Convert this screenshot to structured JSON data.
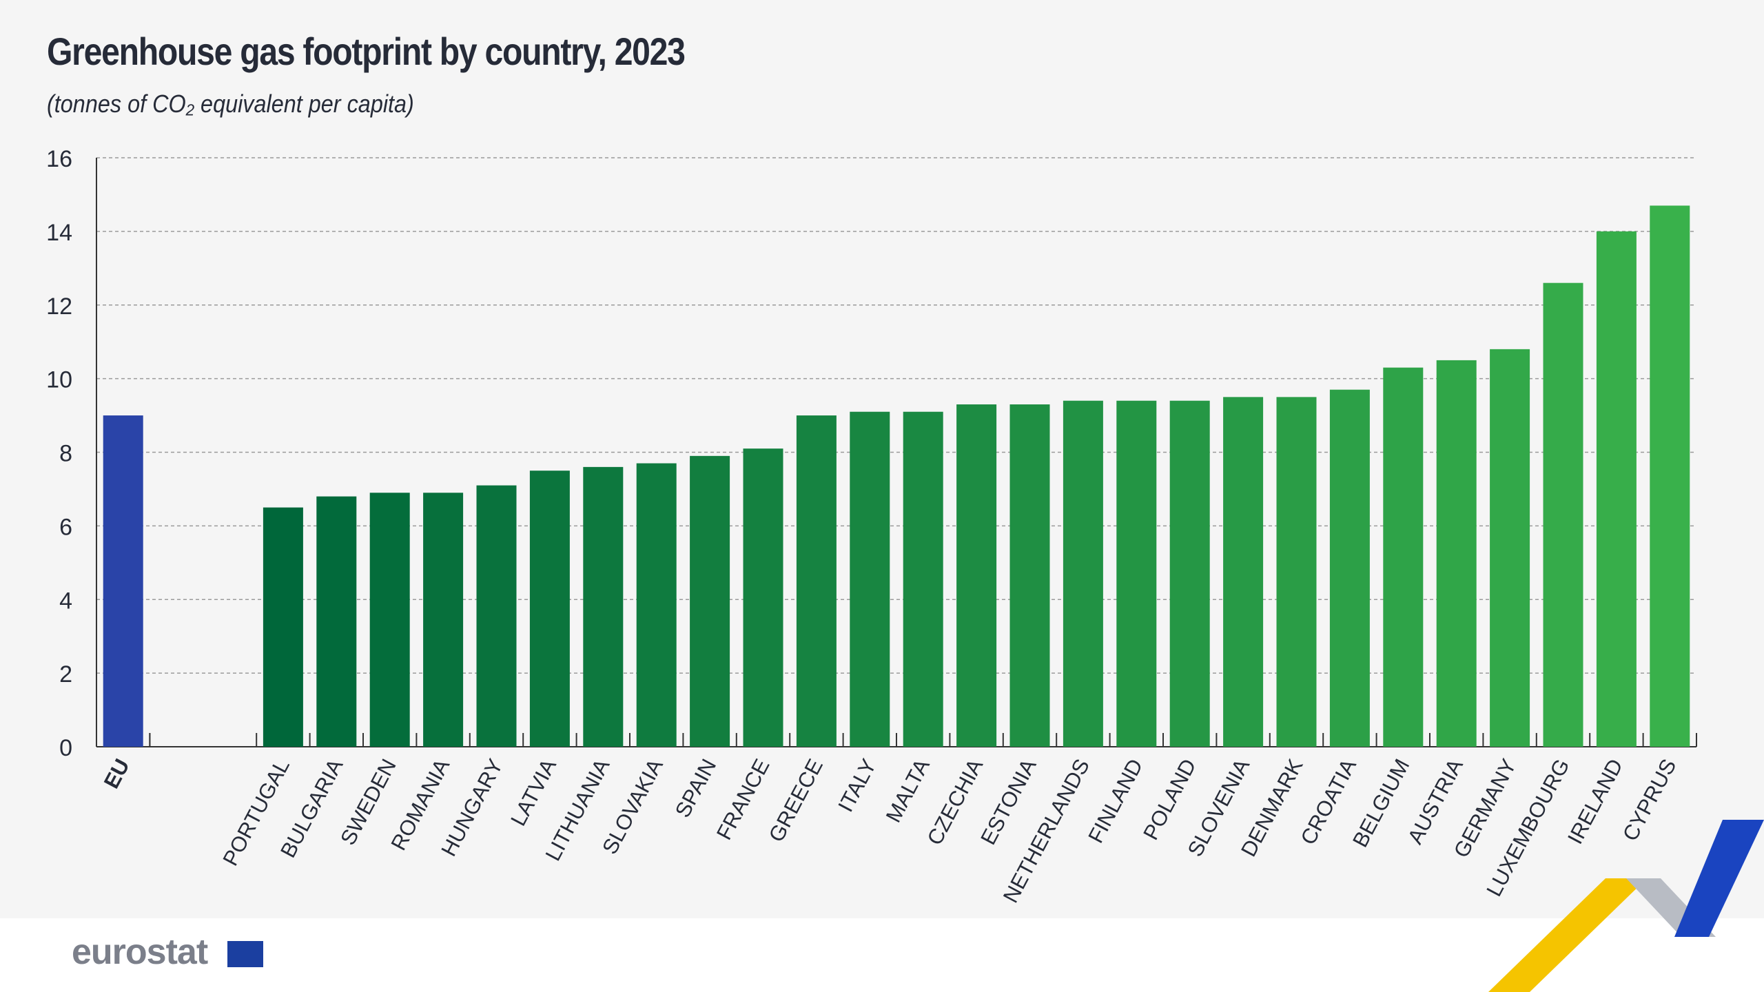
{
  "title": "Greenhouse gas footprint by country, 2023",
  "subtitle": "(tonnes of CO₂ equivalent per capita)",
  "logo": "eurostat",
  "chart_data": {
    "type": "bar",
    "title": "Greenhouse gas footprint by country, 2023",
    "ylabel": "(tonnes of CO2 equivalent per capita)",
    "ylim": [
      0,
      16
    ],
    "yticks": [
      0,
      2,
      4,
      6,
      8,
      10,
      12,
      14,
      16
    ],
    "grid": true,
    "categories": [
      "EU",
      "",
      "PORTUGAL",
      "BULGARIA",
      "SWEDEN",
      "ROMANIA",
      "HUNGARY",
      "LATVIA",
      "LITHUANIA",
      "SLOVAKIA",
      "SPAIN",
      "FRANCE",
      "GREECE",
      "ITALY",
      "MALTA",
      "CZECHIA",
      "ESTONIA",
      "NETHERLANDS",
      "FINLAND",
      "POLAND",
      "SLOVENIA",
      "DENMARK",
      "CROATIA",
      "BELGIUM",
      "AUSTRIA",
      "GERMANY",
      "LUXEMBOURG",
      "IRELAND",
      "CYPRUS"
    ],
    "values": [
      9.0,
      null,
      6.5,
      6.8,
      6.9,
      6.9,
      7.1,
      7.5,
      7.6,
      7.7,
      7.9,
      8.1,
      9.0,
      9.1,
      9.1,
      9.3,
      9.3,
      9.4,
      9.4,
      9.4,
      9.5,
      9.5,
      9.7,
      10.3,
      10.5,
      10.8,
      12.6,
      14.0,
      14.7
    ],
    "colors": {
      "eu": "#2a44a8",
      "country_start": "#00673a",
      "country_end": "#39b14b"
    }
  }
}
